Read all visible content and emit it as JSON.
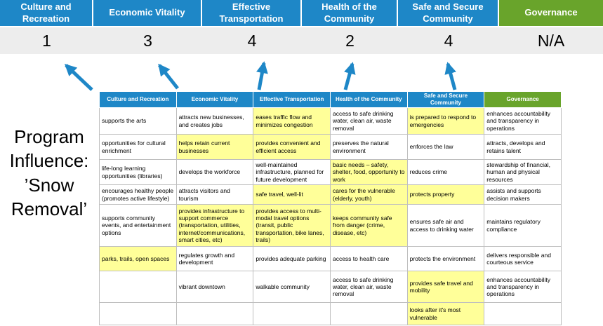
{
  "program_label": "Program Influence: ’Snow Removal’",
  "colors": {
    "blue": "#1E87C7",
    "green": "#69A42B",
    "highlight": "#FFFF99",
    "score-bg": "#EDEDED",
    "border": "#BFBFBF"
  },
  "summary": {
    "columns": [
      {
        "label": "Culture and Recreation",
        "score": "1",
        "theme": "blue"
      },
      {
        "label": "Economic Vitality",
        "score": "3",
        "theme": "blue"
      },
      {
        "label": "Effective Transportation",
        "score": "4",
        "theme": "blue"
      },
      {
        "label": "Health of the Community",
        "score": "2",
        "theme": "blue"
      },
      {
        "label": "Safe and Secure Community",
        "score": "4",
        "theme": "blue"
      },
      {
        "label": "Governance",
        "score": "N/A",
        "theme": "green"
      }
    ]
  },
  "matrix": {
    "headers": [
      {
        "label": "Culture and Recreation",
        "theme": "blue"
      },
      {
        "label": "Economic Vitality",
        "theme": "blue"
      },
      {
        "label": "Effective Transportation",
        "theme": "blue"
      },
      {
        "label": "Health of the Community",
        "theme": "blue"
      },
      {
        "label": "Safe and Secure Community",
        "theme": "blue"
      },
      {
        "label": "Governance",
        "theme": "green"
      }
    ],
    "rows": [
      [
        {
          "text": "supports the arts",
          "highlight": false
        },
        {
          "text": "attracts new businesses, and creates jobs",
          "highlight": false
        },
        {
          "text": "eases traffic flow and minimizes congestion",
          "highlight": true
        },
        {
          "text": "access to safe drinking water, clean air, waste removal",
          "highlight": false
        },
        {
          "text": "is prepared to respond to emergencies",
          "highlight": true
        },
        {
          "text": "enhances accountability and transparency in operations",
          "highlight": false
        }
      ],
      [
        {
          "text": "opportunities for cultural enrichment",
          "highlight": false
        },
        {
          "text": "helps retain current businesses",
          "highlight": true
        },
        {
          "text": "provides convenient and efficient access",
          "highlight": true
        },
        {
          "text": "preserves the natural environment",
          "highlight": false
        },
        {
          "text": "enforces the law",
          "highlight": false
        },
        {
          "text": "attracts, develops and retains talent",
          "highlight": false
        }
      ],
      [
        {
          "text": "life-long learning opportunities (libraries)",
          "highlight": false
        },
        {
          "text": "develops the workforce",
          "highlight": false
        },
        {
          "text": "well-maintained infrastructure, planned for future development",
          "highlight": false
        },
        {
          "text": "basic needs – safety, shelter, food, opportunity to work",
          "highlight": true
        },
        {
          "text": "reduces crime",
          "highlight": false
        },
        {
          "text": "stewardship of financial, human and physical resources",
          "highlight": false
        }
      ],
      [
        {
          "text": "encourages healthy people (promotes active lifestyle)",
          "highlight": false
        },
        {
          "text": "attracts visitors and tourism",
          "highlight": false
        },
        {
          "text": "safe travel, well-lit",
          "highlight": true
        },
        {
          "text": "cares for the vulnerable (elderly, youth)",
          "highlight": true
        },
        {
          "text": "protects property",
          "highlight": true
        },
        {
          "text": "assists and supports decision makers",
          "highlight": false
        }
      ],
      [
        {
          "text": "supports community events, and entertainment options",
          "highlight": false
        },
        {
          "text": "provides infrastructure to support commerce (transportation, utilities, internet/communications, smart cities, etc)",
          "highlight": true
        },
        {
          "text": "provides access to multi-modal travel options (transit, public transportation, bike lanes, trails)",
          "highlight": true
        },
        {
          "text": "keeps community safe from danger (crime, disease, etc)",
          "highlight": true
        },
        {
          "text": "ensures safe air and access to drinking water",
          "highlight": false
        },
        {
          "text": "maintains regulatory compliance",
          "highlight": false
        }
      ],
      [
        {
          "text": "parks, trails, open spaces",
          "highlight": true
        },
        {
          "text": "regulates growth and development",
          "highlight": false
        },
        {
          "text": "provides adequate parking",
          "highlight": false
        },
        {
          "text": "access to health care",
          "highlight": false
        },
        {
          "text": "protects the environment",
          "highlight": false
        },
        {
          "text": "delivers responsible and courteous service",
          "highlight": false
        }
      ],
      [
        {
          "text": "",
          "highlight": false
        },
        {
          "text": "vibrant downtown",
          "highlight": false
        },
        {
          "text": "walkable community",
          "highlight": false
        },
        {
          "text": "access to safe drinking water, clean air, waste removal",
          "highlight": false
        },
        {
          "text": "provides safe travel and mobility",
          "highlight": true
        },
        {
          "text": "enhances accountability and transparency in operations",
          "highlight": false
        }
      ],
      [
        {
          "text": "",
          "highlight": false
        },
        {
          "text": "",
          "highlight": false
        },
        {
          "text": "",
          "highlight": false
        },
        {
          "text": "",
          "highlight": false
        },
        {
          "text": "looks after it's most vulnerable",
          "highlight": true
        },
        {
          "text": "",
          "highlight": false
        }
      ]
    ]
  },
  "arrows": {
    "count": 5,
    "description": "blue up-arrows from matrix to scores"
  }
}
